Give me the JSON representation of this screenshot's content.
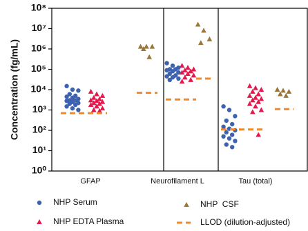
{
  "chart_data": {
    "type": "strip",
    "ylabel": "Concentration (fg/mL)",
    "yscale": "log",
    "ylim": [
      1,
      100000000
    ],
    "yticks": [
      {
        "value": 1,
        "label": "10⁰"
      },
      {
        "value": 10,
        "label": "10¹"
      },
      {
        "value": 100,
        "label": "10²"
      },
      {
        "value": 1000,
        "label": "10³"
      },
      {
        "value": 10000,
        "label": "10⁴"
      },
      {
        "value": 100000,
        "label": "10⁵"
      },
      {
        "value": 1000000,
        "label": "10⁶"
      },
      {
        "value": 10000000,
        "label": "10⁷"
      },
      {
        "value": 100000000,
        "label": "10⁸"
      }
    ],
    "categories": [
      "GFAP",
      "Neurofilament L",
      "Tau (total)"
    ],
    "series": [
      {
        "name": "NHP Serum",
        "color": "#3d62b0",
        "marker": "circle",
        "values": [
          [
            15000,
            10000,
            9000,
            6000,
            5000,
            4500,
            4000,
            3500,
            3000,
            3000,
            2800,
            2500,
            2200,
            2000,
            1800,
            1500,
            1200,
            1000
          ],
          [
            200000,
            150000,
            120000,
            100000,
            100000,
            90000,
            80000,
            70000,
            60000,
            50000,
            45000,
            40000,
            35000,
            30000
          ],
          [
            1500,
            1000,
            500,
            300,
            200,
            150,
            120,
            100,
            80,
            60,
            50,
            40,
            30,
            20,
            15
          ]
        ]
      },
      {
        "name": "NHP EDTA Plasma",
        "color": "#e4184c",
        "marker": "triangle",
        "values": [
          [
            8000,
            6000,
            5000,
            4000,
            3500,
            3000,
            2800,
            2500,
            2200,
            2000,
            1800,
            1500,
            1200,
            1000,
            900
          ],
          [
            150000,
            120000,
            100000,
            90000,
            80000,
            70000,
            60000,
            50000,
            40000,
            30000,
            25000
          ],
          [
            15000,
            12000,
            10000,
            8000,
            6000,
            5000,
            4000,
            3500,
            3000,
            2500,
            2000,
            1500,
            1000,
            800,
            60
          ]
        ]
      },
      {
        "name": "NHP  CSF",
        "color": "#9a7638",
        "marker": "triangle",
        "values": [
          [
            1300000,
            1300000,
            1300000,
            1000000,
            400000
          ],
          [
            16000000,
            8000000,
            3000000,
            2000000
          ],
          [
            10000,
            9000,
            8000,
            6000,
            5000
          ]
        ]
      },
      {
        "name": "LLOD (dilution-adjusted)",
        "color": "#f0892a",
        "marker": "dash",
        "values": [
          [
            700,
            7000
          ],
          [
            3300,
            35000
          ],
          [
            110,
            1100
          ]
        ]
      }
    ]
  }
}
